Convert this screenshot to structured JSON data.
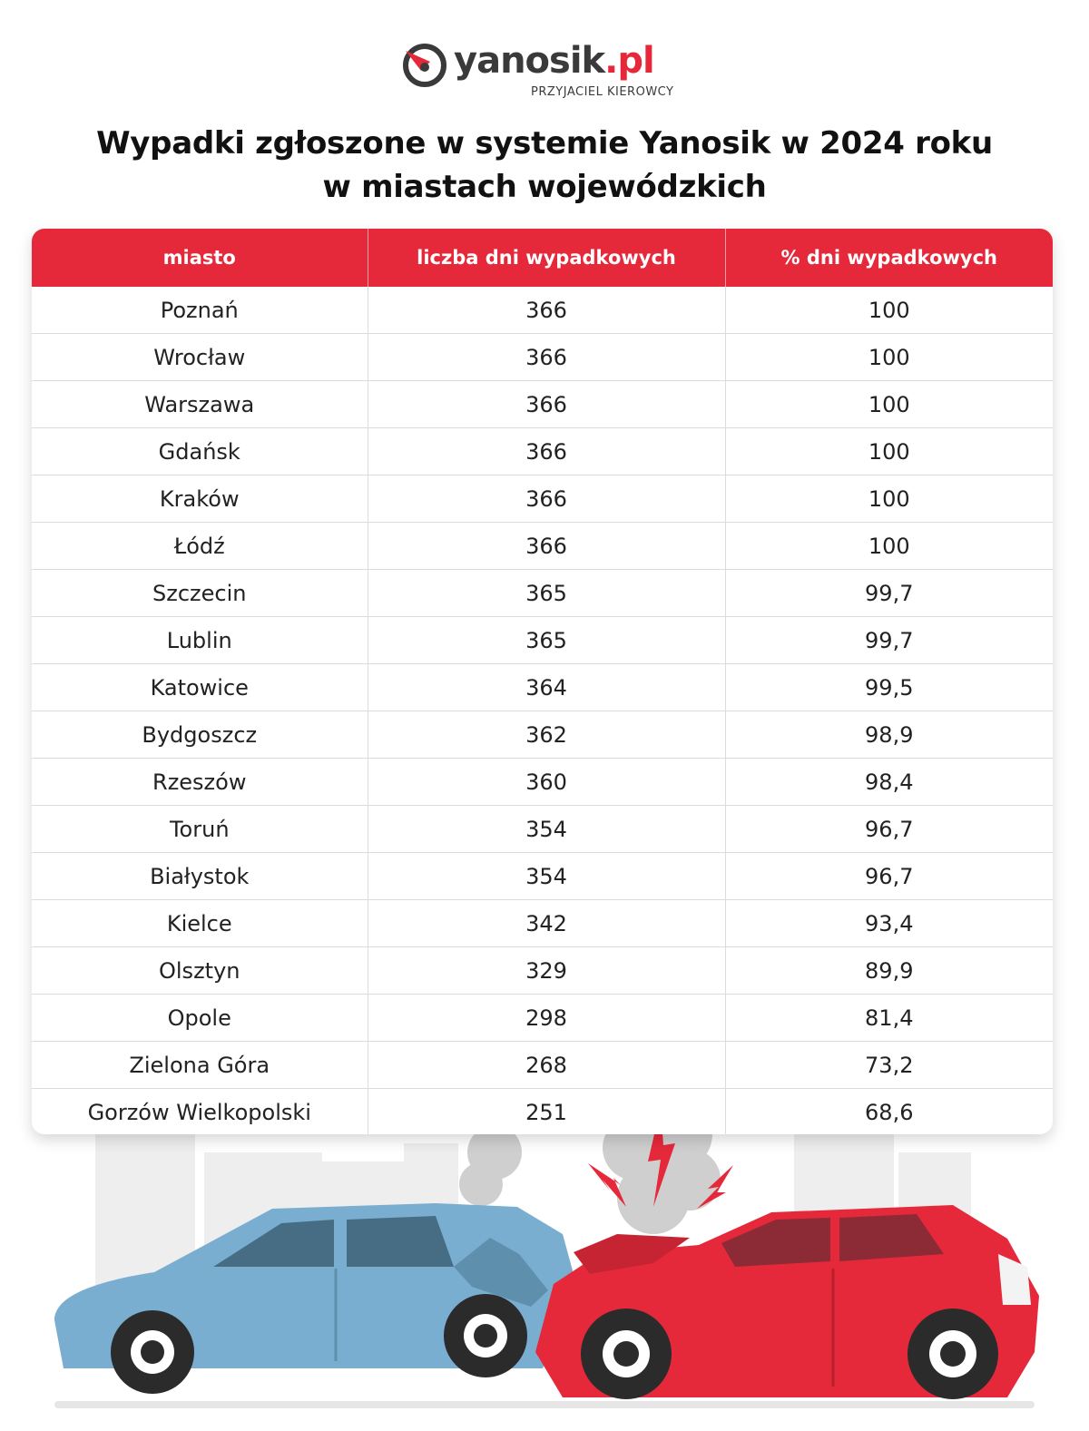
{
  "brand": {
    "name_main": "yanosik",
    "name_suffix": ".pl",
    "tagline": "PRZYJACIEL KIEROWCY",
    "accent_color": "#e5293a"
  },
  "title": {
    "line1": "Wypadki zgłoszone w systemie Yanosik w 2024 roku",
    "line2": "w miastach wojewódzkich"
  },
  "table": {
    "columns": [
      "miasto",
      "liczba dni wypadkowych",
      "% dni wypadkowych"
    ],
    "rows": [
      [
        "Poznań",
        "366",
        "100"
      ],
      [
        "Wrocław",
        "366",
        "100"
      ],
      [
        "Warszawa",
        "366",
        "100"
      ],
      [
        "Gdańsk",
        "366",
        "100"
      ],
      [
        "Kraków",
        "366",
        "100"
      ],
      [
        "Łódź",
        "366",
        "100"
      ],
      [
        "Szczecin",
        "365",
        "99,7"
      ],
      [
        "Lublin",
        "365",
        "99,7"
      ],
      [
        "Katowice",
        "364",
        "99,5"
      ],
      [
        "Bydgoszcz",
        "362",
        "98,9"
      ],
      [
        "Rzeszów",
        "360",
        "98,4"
      ],
      [
        "Toruń",
        "354",
        "96,7"
      ],
      [
        "Białystok",
        "354",
        "96,7"
      ],
      [
        "Kielce",
        "342",
        "93,4"
      ],
      [
        "Olsztyn",
        "329",
        "89,9"
      ],
      [
        "Opole",
        "298",
        "81,4"
      ],
      [
        "Zielona Góra",
        "268",
        "73,2"
      ],
      [
        "Gorzów Wielkopolski",
        "251",
        "68,6"
      ]
    ]
  },
  "illustration": {
    "subject": "car-crash-illustration",
    "left_car_color": "#7aaed0",
    "right_car_color": "#e5293a"
  }
}
